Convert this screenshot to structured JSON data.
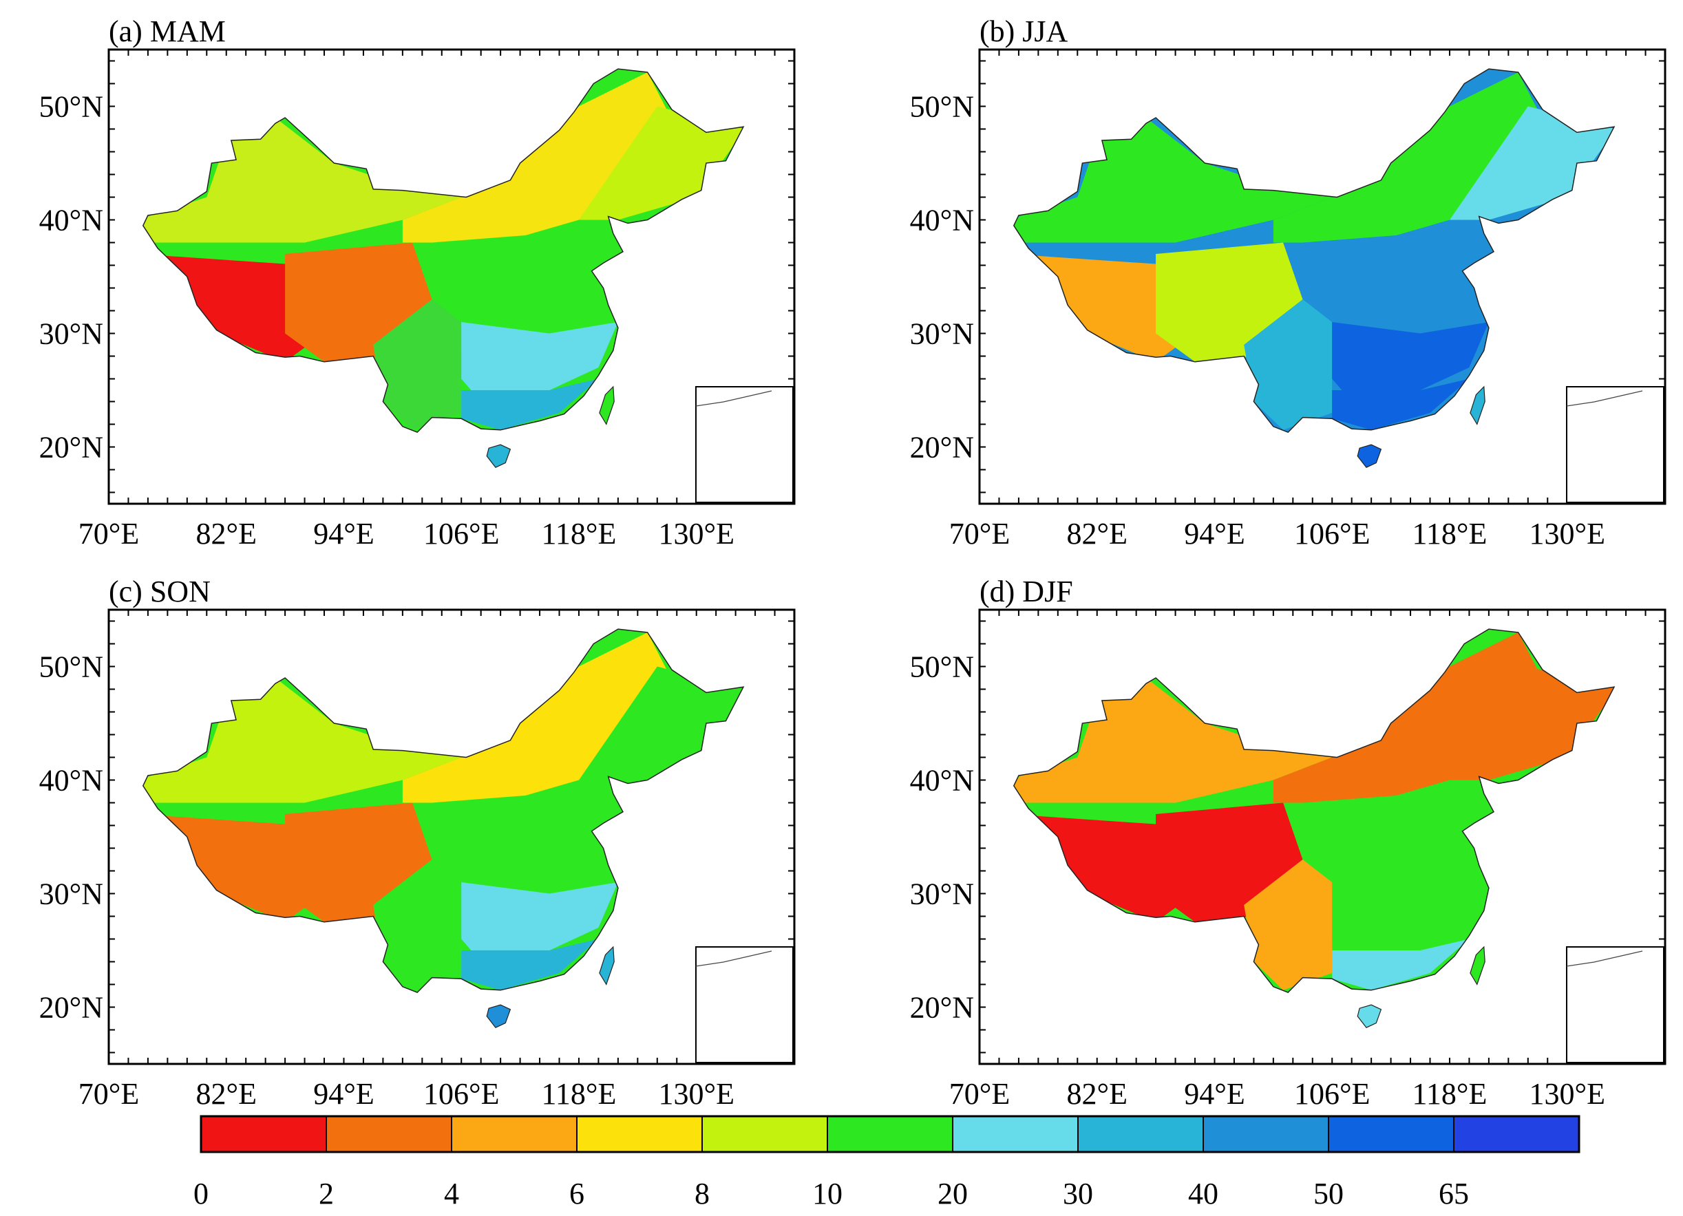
{
  "figure": {
    "panels": [
      {
        "label": "(a) MAM"
      },
      {
        "label": "(b) JJA"
      },
      {
        "label": "(c) SON"
      },
      {
        "label": "(d) DJF"
      }
    ],
    "lat_labels": [
      "50°N",
      "40°N",
      "30°N",
      "20°N"
    ],
    "lon_labels": [
      "70°E",
      "82°E",
      "94°E",
      "106°E",
      "118°E",
      "130°E"
    ],
    "colorbar": {
      "ticks": [
        "0",
        "2",
        "4",
        "6",
        "8",
        "10",
        "20",
        "30",
        "40",
        "50",
        "65"
      ],
      "colors": [
        "#f01414",
        "#f2700e",
        "#fba814",
        "#fce10a",
        "#c3f20f",
        "#2de820",
        "#66dcea",
        "#27b4d6",
        "#1f8fd7",
        "#0e63e0",
        "#2342e4"
      ]
    },
    "region_palettes": {
      "MAM": {
        "west": "#c8ee1a",
        "north": "#f5e40f",
        "tibet_w": "#f01414",
        "tibet_e": "#f2700e",
        "southwest": "#3cd838",
        "central": "#2de820",
        "south": "#66dcea",
        "southeast": "#27b4d6",
        "northeast": "#c3f20f",
        "hainan": "#27b4d6",
        "taiwan": "#2de820"
      },
      "JJA": {
        "west": "#2de820",
        "north": "#2de820",
        "tibet_w": "#fba814",
        "tibet_e": "#c3f20f",
        "southwest": "#27b4d6",
        "central": "#1f8fd7",
        "south": "#0e63e0",
        "southeast": "#0e63e0",
        "northeast": "#66dcea",
        "hainan": "#0e63e0",
        "taiwan": "#27b4d6"
      },
      "SON": {
        "west": "#c3f20f",
        "north": "#fce10a",
        "tibet_w": "#f2700e",
        "tibet_e": "#f2700e",
        "southwest": "#2de820",
        "central": "#2de820",
        "south": "#66dcea",
        "southeast": "#27b4d6",
        "northeast": "#2de820",
        "hainan": "#1f8fd7",
        "taiwan": "#27b4d6"
      },
      "DJF": {
        "west": "#fba814",
        "north": "#f2700e",
        "tibet_w": "#f01414",
        "tibet_e": "#f01414",
        "southwest": "#fba814",
        "central": "#2de820",
        "south": "#2de820",
        "southeast": "#66dcea",
        "northeast": "#f2700e",
        "hainan": "#66dcea",
        "taiwan": "#2de820"
      }
    }
  }
}
